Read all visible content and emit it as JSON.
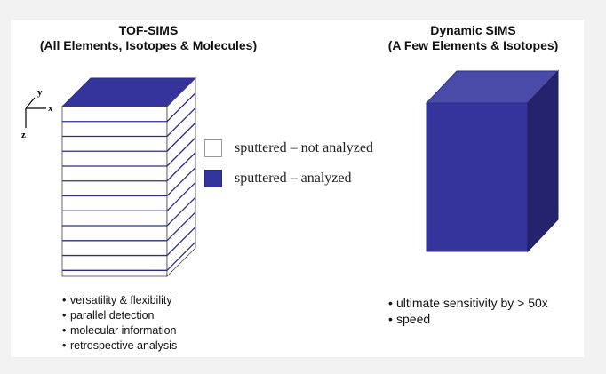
{
  "left": {
    "title_line1": "TOF-SIMS",
    "title_line2": "(All Elements, Isotopes & Molecules)",
    "bullets": [
      "versatility & flexibility",
      "parallel detection",
      "molecular information",
      "retrospective analysis"
    ]
  },
  "right": {
    "title_line1": "Dynamic SIMS",
    "title_line2": "(A Few Elements & Isotopes)",
    "bullets": [
      "ultimate sensitivity by > 50x",
      "speed"
    ]
  },
  "axes": {
    "y": "y",
    "x": "x",
    "z": "z"
  },
  "legend": [
    {
      "label": "sputtered – not analyzed",
      "swatch": "white"
    },
    {
      "label": "sputtered – analyzed",
      "swatch": "blue"
    }
  ],
  "colors": {
    "analyzed": "#34349c",
    "analyzed_top": "#4a4aa8",
    "analyzed_side": "#24246e",
    "outline": "#2e2e8a"
  }
}
